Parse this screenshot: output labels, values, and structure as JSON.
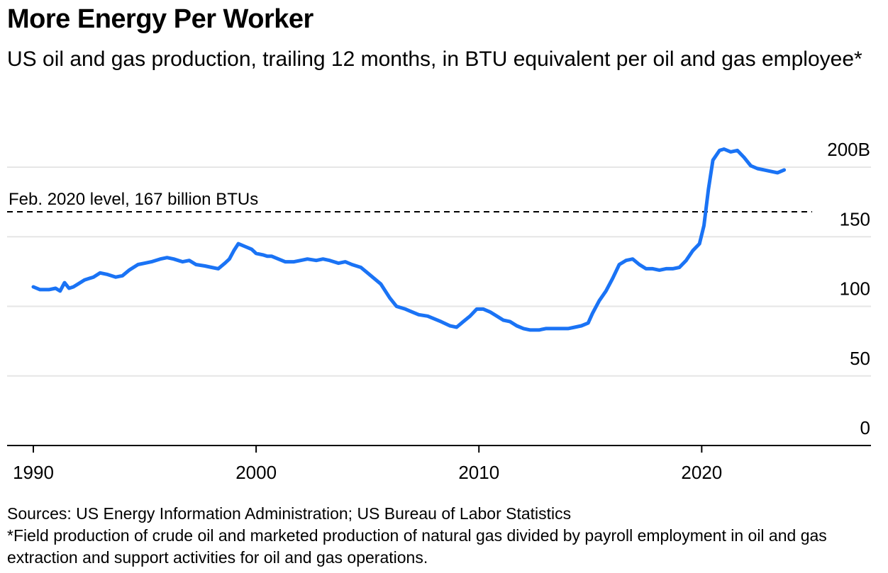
{
  "header": {
    "title": "More Energy Per Worker",
    "subtitle": "US oil and gas production, trailing 12 months, in BTU equivalent per oil and gas employee*"
  },
  "footer": {
    "sources": "Sources: US Energy Information Administration; US Bureau of Labor Statistics",
    "note": "*Field production of crude oil and marketed production of natural gas divided by payroll employment in oil and gas extraction and support activities for oil and gas operations."
  },
  "colors": {
    "line": "#1a73f5",
    "grid": "#e6e6e6",
    "axis": "#000000"
  },
  "chart_data": {
    "type": "line",
    "xlim": [
      1990,
      2027
    ],
    "ylim": [
      0,
      200
    ],
    "yticks": [
      0,
      50,
      100,
      150,
      200
    ],
    "ytick_labels": [
      "0",
      "50",
      "100",
      "150",
      "200B"
    ],
    "xticks": [
      1990,
      2000,
      2010,
      2020
    ],
    "xtick_labels": [
      "1990",
      "2000",
      "2010",
      "2020"
    ],
    "grid": true,
    "reference_line": {
      "value": 167,
      "x_start": 1990,
      "x_end": 2025,
      "label": "Feb. 2020 level, 167 billion BTUs"
    },
    "series": [
      {
        "x": [
          1990.0,
          1990.3,
          1990.7,
          1991.0,
          1991.2,
          1991.4,
          1991.6,
          1991.8,
          1992.0,
          1992.3,
          1992.7,
          1993.0,
          1993.3,
          1993.7,
          1994.0,
          1994.3,
          1994.7,
          1995.0,
          1995.3,
          1995.7,
          1996.0,
          1996.3,
          1996.7,
          1997.0,
          1997.3,
          1997.7,
          1998.0,
          1998.3,
          1998.6,
          1998.8,
          1999.0,
          1999.2,
          1999.5,
          1999.8,
          2000.0,
          2000.3,
          2000.5,
          2000.7,
          2001.0,
          2001.3,
          2001.7,
          2002.0,
          2002.3,
          2002.7,
          2003.0,
          2003.3,
          2003.7,
          2004.0,
          2004.3,
          2004.7,
          2005.0,
          2005.3,
          2005.6,
          2006.0,
          2006.3,
          2006.7,
          2007.0,
          2007.3,
          2007.7,
          2008.0,
          2008.3,
          2008.7,
          2009.0,
          2009.3,
          2009.6,
          2009.9,
          2010.2,
          2010.5,
          2010.8,
          2011.1,
          2011.4,
          2011.7,
          2012.0,
          2012.3,
          2012.7,
          2013.0,
          2013.3,
          2013.7,
          2014.0,
          2014.3,
          2014.6,
          2014.9,
          2015.1,
          2015.4,
          2015.7,
          2016.0,
          2016.3,
          2016.6,
          2016.9,
          2017.2,
          2017.5,
          2017.8,
          2018.1,
          2018.4,
          2018.7,
          2019.0,
          2019.3,
          2019.6,
          2019.9,
          2020.1,
          2020.3,
          2020.5,
          2020.8,
          2021.0,
          2021.3,
          2021.6,
          2021.9,
          2022.2,
          2022.5,
          2022.8,
          2023.1,
          2023.4,
          2023.7
        ],
        "values": [
          114,
          112,
          112,
          113,
          111,
          117,
          113,
          114,
          116,
          119,
          121,
          124,
          123,
          121,
          122,
          126,
          130,
          131,
          132,
          134,
          135,
          134,
          132,
          133,
          130,
          129,
          128,
          127,
          131,
          134,
          140,
          145,
          143,
          141,
          138,
          137,
          136,
          136,
          134,
          132,
          132,
          133,
          134,
          133,
          134,
          133,
          131,
          132,
          130,
          128,
          124,
          120,
          116,
          106,
          100,
          98,
          96,
          94,
          93,
          91,
          89,
          86,
          85,
          89,
          93,
          98,
          98,
          96,
          93,
          90,
          89,
          86,
          84,
          83,
          83,
          84,
          84,
          84,
          84,
          85,
          86,
          88,
          95,
          104,
          111,
          120,
          130,
          133,
          134,
          130,
          127,
          127,
          126,
          127,
          127,
          128,
          133,
          140,
          145,
          158,
          184,
          205,
          212,
          213,
          211,
          212,
          207,
          201,
          199,
          198,
          197,
          196,
          198
        ]
      }
    ]
  }
}
